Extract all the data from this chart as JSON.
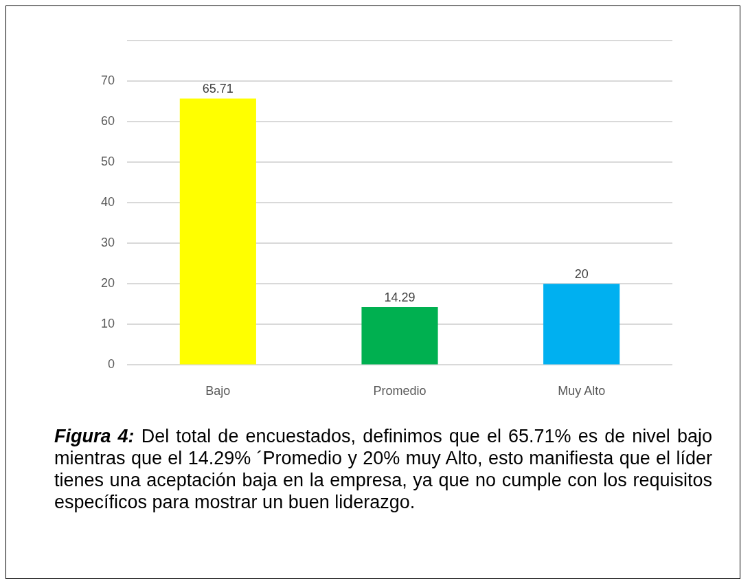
{
  "chart_data": {
    "type": "bar",
    "categories": [
      "Bajo",
      "Promedio",
      "Muy Alto"
    ],
    "values": [
      65.71,
      14.29,
      20
    ],
    "colors": [
      "#ffff00",
      "#00b050",
      "#00b0f0"
    ],
    "ylim": [
      0,
      80
    ],
    "yticks": [
      0,
      10,
      20,
      30,
      40,
      50,
      60,
      70,
      {
        "value": 80,
        "label": null
      }
    ],
    "grid": "y",
    "legend": false,
    "data_labels": true,
    "annotations": [
      "Figura 4:",
      "Del total de encuestados, definimos que el 65.71% es de nivel bajo mientras que el 14.29% ´Promedio y 20% muy Alto, esto manifiesta que el líder tienes una aceptación baja en la empresa, ya que no cumple con los requisitos específicos para mostrar un buen liderazgo."
    ]
  }
}
